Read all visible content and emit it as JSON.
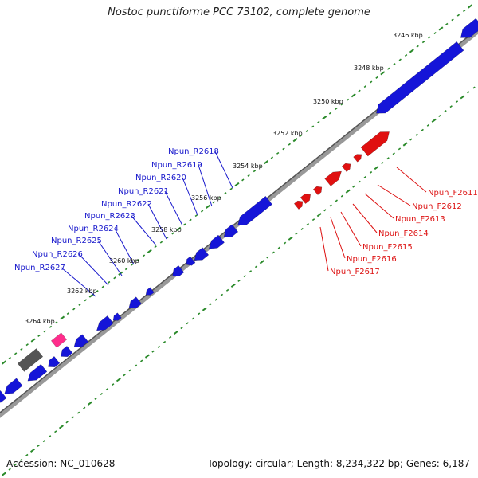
{
  "title": "Nostoc punctiforme PCC 73102, complete genome",
  "footer": {
    "accession": "Accession: NC_010628",
    "topology": "Topology: circular; Length: 8,234,322 bp; Genes: 6,187"
  },
  "colors": {
    "reverse_gene": "#1515d8",
    "forward_gene": "#e01010",
    "pink_feature": "#ff2d8c",
    "gray_feature": "#555555",
    "backbone": "#777777",
    "tick": "#2a8a2a",
    "reverse_label": "#1a1acc",
    "forward_label": "#dd1111"
  },
  "kbp_scale": [
    "3246 kbp",
    "3248 kbp",
    "3250 kbp",
    "3252 kbp",
    "3254 kbp",
    "3256 kbp",
    "3258 kbp",
    "3260 kbp",
    "3262 kbp",
    "3264 kbp"
  ],
  "reverse_genes": [
    "Npun_R2618",
    "Npun_R2619",
    "Npun_R2620",
    "Npun_R2621",
    "Npun_R2622",
    "Npun_R2623",
    "Npun_R2624",
    "Npun_R2625",
    "Npun_R2626",
    "Npun_R2627"
  ],
  "forward_genes": [
    "Npun_F2611",
    "Npun_F2612",
    "Npun_F2613",
    "Npun_F2614",
    "Npun_F2615",
    "Npun_F2616",
    "Npun_F2617"
  ]
}
